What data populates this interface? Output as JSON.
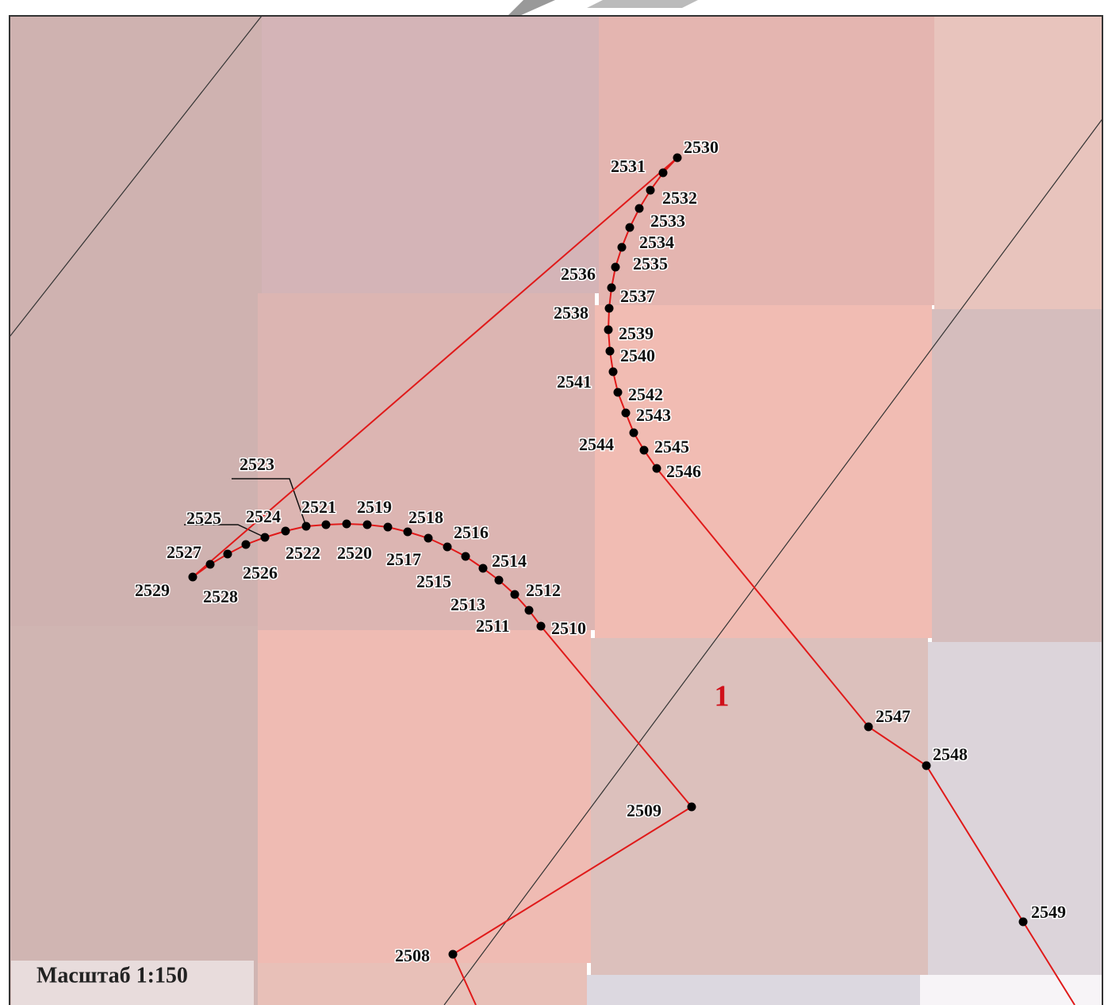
{
  "points": [
    "2508",
    "2509",
    "2510",
    "2511",
    "2512",
    "2513",
    "2514",
    "2515",
    "2516",
    "2517",
    "2518",
    "2519",
    "2520",
    "2521",
    "2522",
    "2523",
    "2524",
    "2525",
    "2526",
    "2527",
    "2528",
    "2529",
    "2530",
    "2531",
    "2532",
    "2533",
    "2534",
    "2535",
    "2536",
    "2537",
    "2538",
    "2539",
    "2540",
    "2541",
    "2542",
    "2543",
    "2544",
    "2545",
    "2546",
    "2547",
    "2548",
    "2549"
  ],
  "parcel_label": "1",
  "scale": "Масштаб 1:150"
}
